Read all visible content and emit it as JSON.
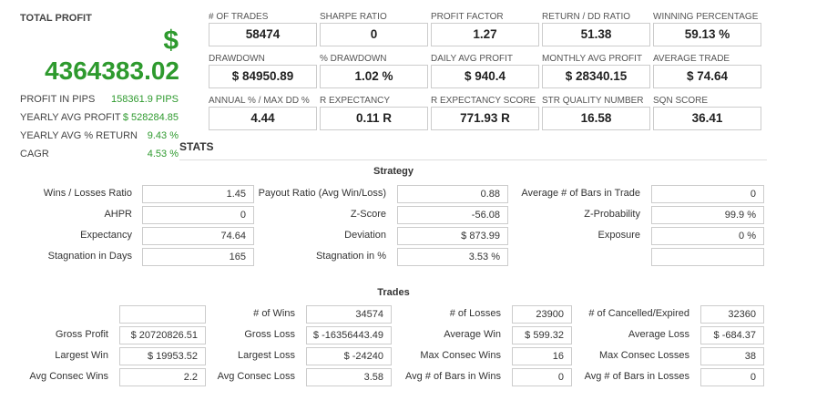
{
  "total_profit": {
    "label": "TOTAL PROFIT",
    "currency": "$",
    "value": "4364383.02"
  },
  "summary": [
    {
      "label": "PROFIT IN PIPS",
      "value": "158361.9 PIPS"
    },
    {
      "label": "YEARLY AVG PROFIT",
      "value": "$ 528284.85"
    },
    {
      "label": "YEARLY AVG % RETURN",
      "value": "9.43 %"
    },
    {
      "label": "CAGR",
      "value": "4.53 %"
    }
  ],
  "metrics": [
    {
      "label": "# OF TRADES",
      "value": "58474"
    },
    {
      "label": "SHARPE RATIO",
      "value": "0"
    },
    {
      "label": "PROFIT FACTOR",
      "value": "1.27"
    },
    {
      "label": "RETURN / DD RATIO",
      "value": "51.38"
    },
    {
      "label": "WINNING PERCENTAGE",
      "value": "59.13 %"
    },
    {
      "label": "DRAWDOWN",
      "value": "$ 84950.89"
    },
    {
      "label": "% DRAWDOWN",
      "value": "1.02 %"
    },
    {
      "label": "DAILY AVG PROFIT",
      "value": "$ 940.4"
    },
    {
      "label": "MONTHLY AVG PROFIT",
      "value": "$ 28340.15"
    },
    {
      "label": "AVERAGE TRADE",
      "value": "$ 74.64"
    },
    {
      "label": "ANNUAL % / MAX DD %",
      "value": "4.44"
    },
    {
      "label": "R EXPECTANCY",
      "value": "0.11 R"
    },
    {
      "label": "R EXPECTANCY SCORE",
      "value": "771.93 R"
    },
    {
      "label": "STR QUALITY NUMBER",
      "value": "16.58"
    },
    {
      "label": "SQN SCORE",
      "value": "36.41"
    }
  ],
  "stats_title": "STATS",
  "strategy": {
    "title": "Strategy",
    "columns": [
      [
        {
          "label": "Wins / Losses Ratio",
          "value": "1.45"
        },
        {
          "label": "AHPR",
          "value": "0"
        },
        {
          "label": "Expectancy",
          "value": "74.64"
        },
        {
          "label": "Stagnation in Days",
          "value": "165"
        }
      ],
      [
        {
          "label": "Payout Ratio (Avg Win/Loss)",
          "value": "0.88"
        },
        {
          "label": "Z-Score",
          "value": "-56.08"
        },
        {
          "label": "Deviation",
          "value": "$ 873.99"
        },
        {
          "label": "Stagnation in %",
          "value": "3.53 %"
        }
      ],
      [
        {
          "label": "Average # of Bars in Trade",
          "value": "0"
        },
        {
          "label": "Z-Probability",
          "value": "99.9 %"
        },
        {
          "label": "Exposure",
          "value": "0 %"
        }
      ]
    ]
  },
  "trades": {
    "title": "Trades",
    "columns": [
      [
        {
          "label": "Gross Profit",
          "value": "$ 20720826.51"
        },
        {
          "label": "Largest Win",
          "value": "$ 19953.52"
        },
        {
          "label": "Avg Consec Wins",
          "value": "2.2"
        }
      ],
      [
        {
          "label": "# of Wins",
          "value": "34574"
        },
        {
          "label": "Gross Loss",
          "value": "$ -16356443.49"
        },
        {
          "label": "Largest Loss",
          "value": "$ -24240"
        },
        {
          "label": "Avg Consec Loss",
          "value": "3.58"
        }
      ],
      [
        {
          "label": "# of Losses",
          "value": "23900"
        },
        {
          "label": "Average Win",
          "value": "$ 599.32"
        },
        {
          "label": "Max Consec Wins",
          "value": "16"
        },
        {
          "label": "Avg # of Bars in Wins",
          "value": "0"
        }
      ],
      [
        {
          "label": "# of Cancelled/Expired",
          "value": "32360"
        },
        {
          "label": "Average Loss",
          "value": "$ -684.37"
        },
        {
          "label": "Max Consec Losses",
          "value": "38"
        },
        {
          "label": "Avg # of Bars in Losses",
          "value": "0"
        }
      ]
    ]
  }
}
